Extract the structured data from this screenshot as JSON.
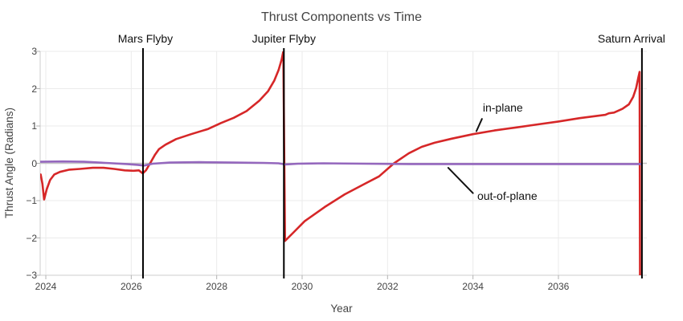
{
  "chart_data": {
    "type": "line",
    "title": "Thrust Components vs Time",
    "xlabel": "Year",
    "ylabel": "Thrust Angle (Radians)",
    "xlim": [
      2023.868,
      2038.07
    ],
    "ylim": [
      -3,
      3
    ],
    "grid": true,
    "legend_position": "inline-annotations",
    "x_ticks": [
      {
        "value": 2024,
        "label": "2024"
      },
      {
        "value": 2026,
        "label": "2026"
      },
      {
        "value": 2028,
        "label": "2028"
      },
      {
        "value": 2030,
        "label": "2030"
      },
      {
        "value": 2032,
        "label": "2032"
      },
      {
        "value": 2034,
        "label": "2034"
      },
      {
        "value": 2036,
        "label": "2036"
      }
    ],
    "y_ticks": [
      {
        "value": -3,
        "label": "−3"
      },
      {
        "value": -2,
        "label": "−2"
      },
      {
        "value": -1,
        "label": "−1"
      },
      {
        "value": 0,
        "label": "0"
      },
      {
        "value": 1,
        "label": "1"
      },
      {
        "value": 2,
        "label": "2"
      },
      {
        "value": 3,
        "label": "3"
      }
    ],
    "series": [
      {
        "name": "in-plane",
        "color": "#d62728",
        "points": [
          [
            2023.88,
            -0.3
          ],
          [
            2023.92,
            -0.55
          ],
          [
            2023.96,
            -0.97
          ],
          [
            2024.02,
            -0.7
          ],
          [
            2024.1,
            -0.45
          ],
          [
            2024.2,
            -0.3
          ],
          [
            2024.33,
            -0.23
          ],
          [
            2024.55,
            -0.17
          ],
          [
            2024.8,
            -0.15
          ],
          [
            2025.1,
            -0.12
          ],
          [
            2025.35,
            -0.12
          ],
          [
            2025.6,
            -0.15
          ],
          [
            2025.85,
            -0.19
          ],
          [
            2026.05,
            -0.2
          ],
          [
            2026.18,
            -0.19
          ],
          [
            2026.27,
            -0.27
          ],
          [
            2026.35,
            -0.18
          ],
          [
            2026.45,
            0.02
          ],
          [
            2026.55,
            0.22
          ],
          [
            2026.65,
            0.38
          ],
          [
            2026.8,
            0.5
          ],
          [
            2027.05,
            0.65
          ],
          [
            2027.4,
            0.78
          ],
          [
            2027.8,
            0.92
          ],
          [
            2028.1,
            1.08
          ],
          [
            2028.4,
            1.22
          ],
          [
            2028.7,
            1.4
          ],
          [
            2029.0,
            1.68
          ],
          [
            2029.2,
            1.93
          ],
          [
            2029.35,
            2.22
          ],
          [
            2029.45,
            2.5
          ],
          [
            2029.52,
            2.78
          ],
          [
            2029.56,
            3.0
          ],
          [
            2029.6,
            -2.08
          ],
          [
            2029.8,
            -1.85
          ],
          [
            2030.06,
            -1.55
          ],
          [
            2030.53,
            -1.17
          ],
          [
            2031.0,
            -0.83
          ],
          [
            2031.5,
            -0.53
          ],
          [
            2031.8,
            -0.35
          ],
          [
            2032.15,
            0.0
          ],
          [
            2032.5,
            0.27
          ],
          [
            2032.8,
            0.44
          ],
          [
            2033.1,
            0.55
          ],
          [
            2033.5,
            0.66
          ],
          [
            2034.0,
            0.78
          ],
          [
            2034.5,
            0.88
          ],
          [
            2035.0,
            0.96
          ],
          [
            2035.5,
            1.04
          ],
          [
            2036.0,
            1.12
          ],
          [
            2036.5,
            1.21
          ],
          [
            2036.9,
            1.27
          ],
          [
            2037.1,
            1.3
          ],
          [
            2037.18,
            1.34
          ],
          [
            2037.3,
            1.36
          ],
          [
            2037.5,
            1.46
          ],
          [
            2037.65,
            1.58
          ],
          [
            2037.75,
            1.78
          ],
          [
            2037.82,
            2.02
          ],
          [
            2037.87,
            2.3
          ],
          [
            2037.9,
            2.45
          ],
          [
            2037.91,
            -3.05
          ]
        ]
      },
      {
        "name": "out-of-plane",
        "color": "#9467bd",
        "points": [
          [
            2023.88,
            0.04
          ],
          [
            2024.4,
            0.05
          ],
          [
            2024.9,
            0.04
          ],
          [
            2025.4,
            0.01
          ],
          [
            2025.9,
            -0.02
          ],
          [
            2026.15,
            -0.04
          ],
          [
            2026.3,
            -0.06
          ],
          [
            2026.5,
            -0.01
          ],
          [
            2026.9,
            0.02
          ],
          [
            2027.6,
            0.03
          ],
          [
            2028.4,
            0.02
          ],
          [
            2029.1,
            0.01
          ],
          [
            2029.45,
            0.0
          ],
          [
            2029.6,
            -0.03
          ],
          [
            2029.9,
            -0.01
          ],
          [
            2030.5,
            0.0
          ],
          [
            2031.5,
            -0.01
          ],
          [
            2032.5,
            -0.02
          ],
          [
            2033.5,
            -0.02
          ],
          [
            2034.5,
            -0.02
          ],
          [
            2035.5,
            -0.02
          ],
          [
            2036.5,
            -0.02
          ],
          [
            2037.4,
            -0.02
          ],
          [
            2037.93,
            -0.02
          ]
        ]
      }
    ],
    "events": [
      {
        "label": "Mars Flyby",
        "x": 2026.275,
        "label_dx": 3
      },
      {
        "label": "Jupiter Flyby",
        "x": 2029.573,
        "label_dx": 0
      },
      {
        "label": "Saturn Arrival",
        "x": 2037.955,
        "label_dx": -13
      }
    ],
    "annotations": [
      {
        "label": "in-plane",
        "pointer": [
          2034.08,
          0.86
        ],
        "pointer_end": [
          2034.21,
          1.19
        ],
        "text_pos": [
          2034.23,
          1.66
        ]
      },
      {
        "label": "out-of-plane",
        "pointer": [
          2033.42,
          -0.12
        ],
        "pointer_end": [
          2034.0,
          -0.8
        ],
        "text_pos": [
          2034.1,
          -0.7
        ]
      }
    ],
    "colors": {
      "in_plane": "#d62728",
      "out_of_plane": "#9467bd",
      "event_line": "#000000",
      "annotation_text": "#111111",
      "axis_text": "#444444",
      "grid": "#ebebeb",
      "zeroline": "#c4c4c4",
      "axis_line": "#cccccc",
      "tick_mark": "#b3b3b3",
      "background": "#ffffff"
    }
  }
}
